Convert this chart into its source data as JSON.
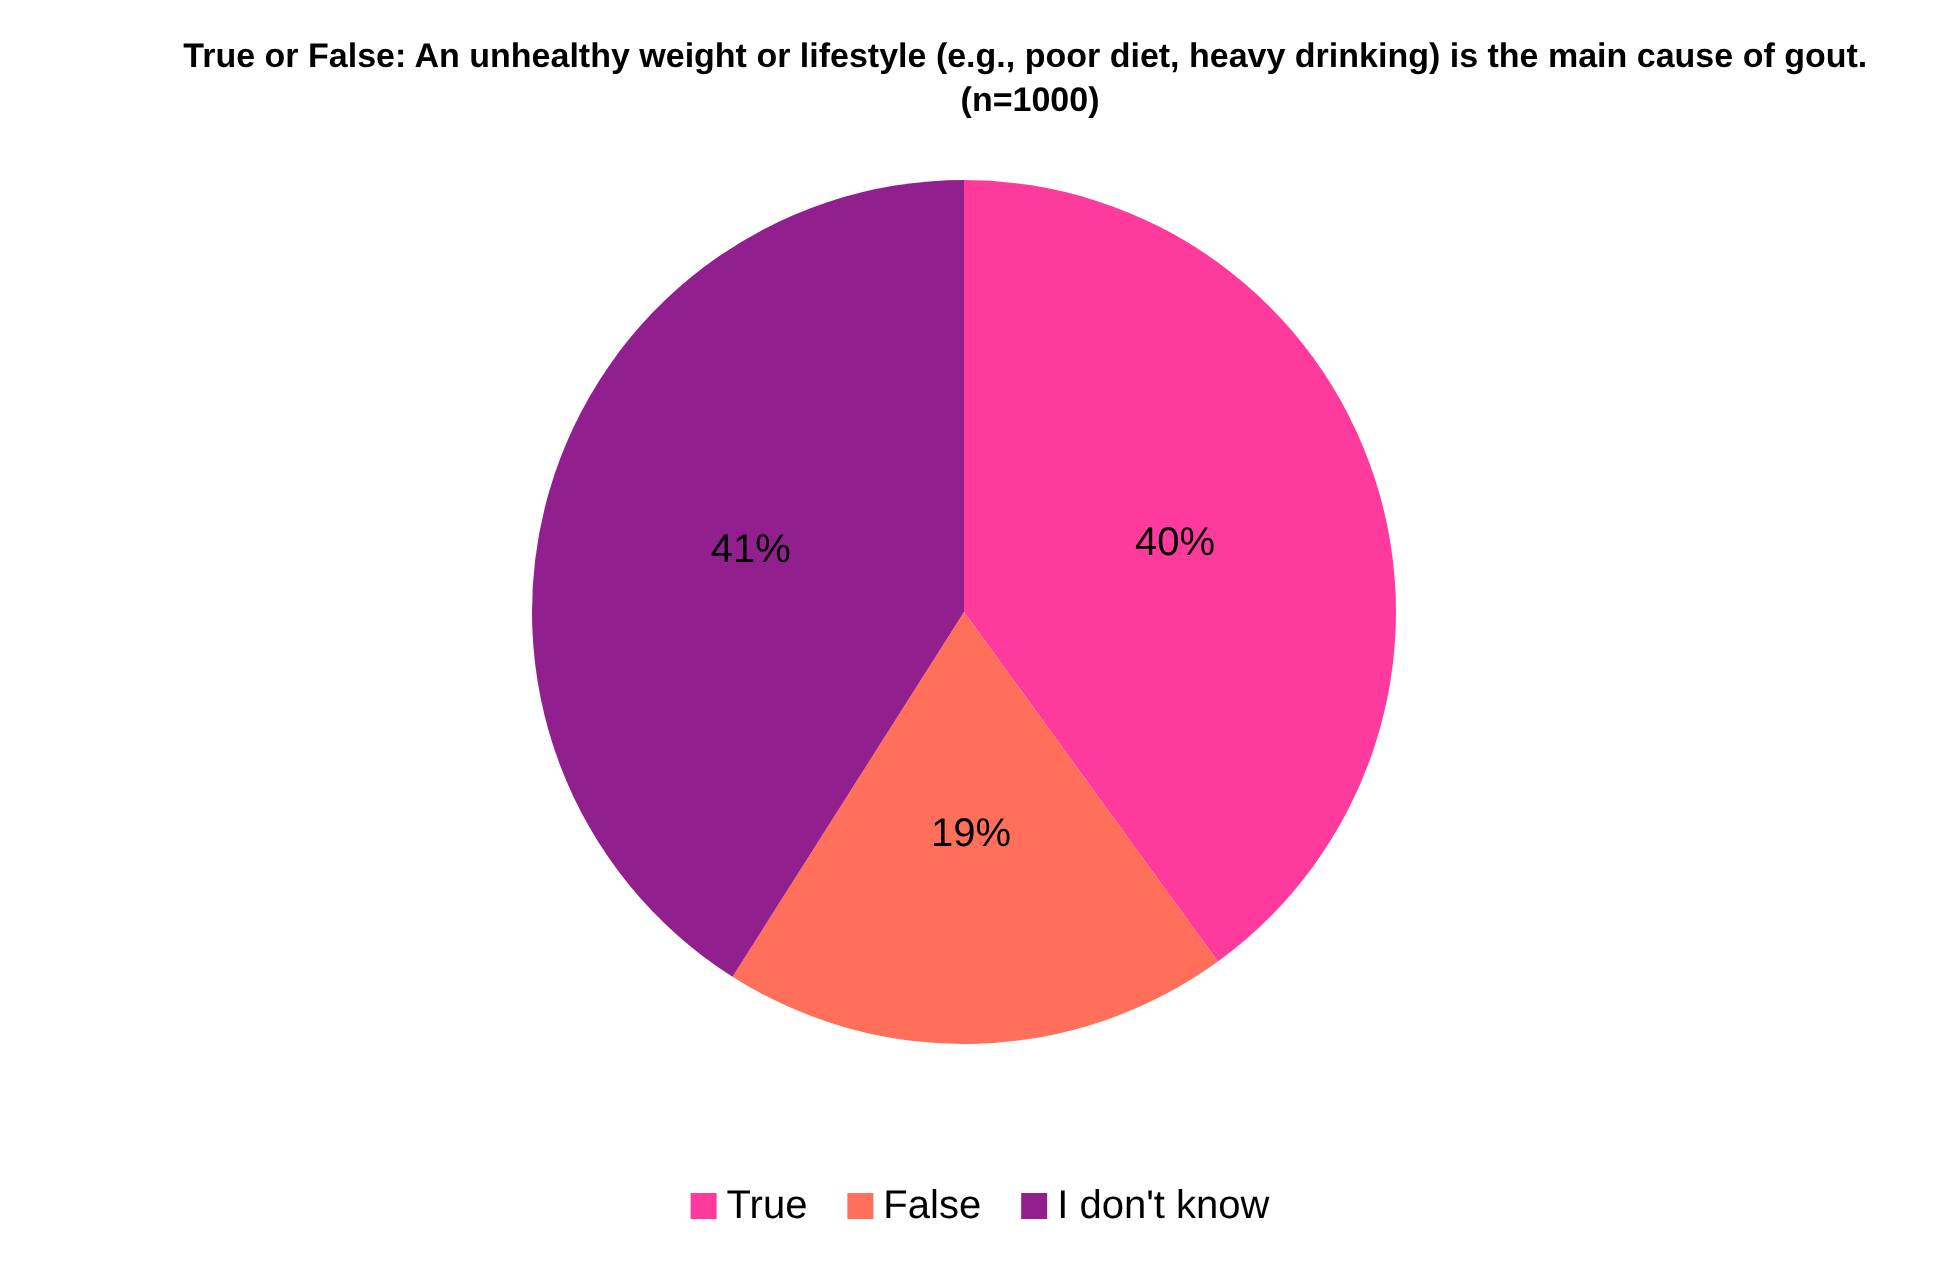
{
  "chart_data": {
    "type": "pie",
    "title": "True or False: An unhealthy weight or lifestyle (e.g., poor diet, heavy drinking) is the main cause of gout. (n=1000)",
    "categories": [
      "True",
      "False",
      "I don't know"
    ],
    "values": [
      40,
      19,
      41
    ],
    "colors": [
      "#fe3b9c",
      "#ff6f59",
      "#921f8e"
    ],
    "value_labels": [
      "40%",
      "19%",
      "41%"
    ],
    "legend": "bottom"
  }
}
